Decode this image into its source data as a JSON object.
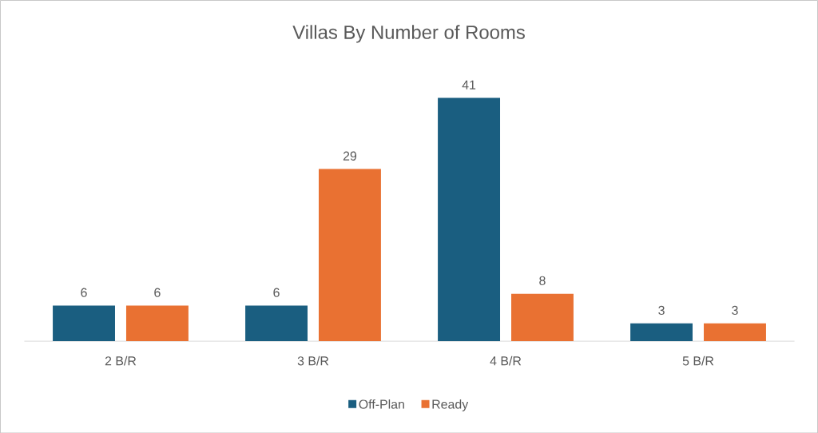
{
  "chart_data": {
    "type": "bar",
    "title": "Villas By Number of Rooms",
    "categories": [
      "2 B/R",
      "3 B/R",
      "4 B/R",
      "5 B/R"
    ],
    "series": [
      {
        "name": "Off-Plan",
        "color": "#1a5e80",
        "values": [
          6,
          6,
          41,
          3
        ]
      },
      {
        "name": "Ready",
        "color": "#e97132",
        "values": [
          6,
          29,
          8,
          3
        ]
      }
    ],
    "data_labels": true,
    "legend": "bottom",
    "tick_labels": "x"
  }
}
